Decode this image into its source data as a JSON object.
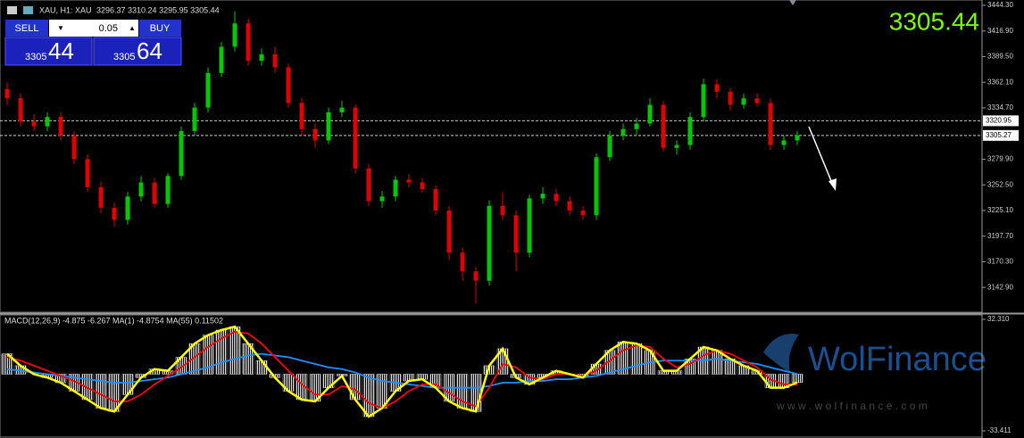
{
  "header": {
    "symbol": "XAU, H1: XAU",
    "ohlc": "3296.37 3310.24 3295.95 3305.44",
    "last_price": "3305.44"
  },
  "trade_panel": {
    "sell": "SELL",
    "buy": "BUY",
    "lot": "0.05",
    "sell_big": "3305",
    "sell_small": "44",
    "buy_big": "3305",
    "buy_small": "64"
  },
  "watermark": {
    "brand": "WolFinance",
    "url": "w w w . w o l f i n a n c e . c o m"
  },
  "chart_data": {
    "type": "candlestick",
    "up_color": "#00c800",
    "down_color": "#e00000",
    "ylim": [
      3116.4,
      3450.0
    ],
    "yticks": [
      {
        "value": 3444.3,
        "label": "3444.30"
      },
      {
        "value": 3416.9,
        "label": "3416.90"
      },
      {
        "value": 3389.5,
        "label": "3389.50"
      },
      {
        "value": 3362.1,
        "label": "3362.10"
      },
      {
        "value": 3334.7,
        "label": "3334.70"
      },
      {
        "value": 3279.9,
        "label": "3279.90"
      },
      {
        "value": 3252.5,
        "label": "3252.50"
      },
      {
        "value": 3225.1,
        "label": "3225.10"
      },
      {
        "value": 3197.7,
        "label": "3197.70"
      },
      {
        "value": 3170.3,
        "label": "3170.30"
      },
      {
        "value": 3142.9,
        "label": "3142.90"
      }
    ],
    "levels": [
      3320.95,
      3305.27
    ],
    "open": [
      3355,
      3345,
      3320,
      3315,
      3325,
      3305,
      3280,
      3250,
      3228,
      3215,
      3240,
      3255,
      3232,
      3262,
      3310,
      3335,
      3372,
      3400,
      3425,
      3385,
      3392,
      3378,
      3340,
      3312,
      3300,
      3330,
      3335,
      3270,
      3235,
      3240,
      3258,
      3255,
      3248,
      3225,
      3180,
      3160,
      3150,
      3230,
      3220,
      3180,
      3238,
      3243,
      3235,
      3225,
      3220,
      3282,
      3305,
      3312,
      3318,
      3338,
      3292,
      3295,
      3325,
      3360,
      3352,
      3338,
      3345,
      3340,
      3295,
      3300
    ],
    "high": [
      3362,
      3350,
      3328,
      3330,
      3330,
      3310,
      3285,
      3256,
      3234,
      3245,
      3262,
      3260,
      3265,
      3315,
      3340,
      3378,
      3405,
      3438,
      3430,
      3398,
      3400,
      3382,
      3345,
      3318,
      3335,
      3342,
      3338,
      3275,
      3246,
      3262,
      3264,
      3260,
      3252,
      3230,
      3185,
      3165,
      3236,
      3245,
      3225,
      3242,
      3250,
      3248,
      3240,
      3230,
      3286,
      3310,
      3318,
      3324,
      3345,
      3342,
      3300,
      3330,
      3366,
      3365,
      3356,
      3350,
      3350,
      3345,
      3305,
      3310
    ],
    "low": [
      3338,
      3315,
      3310,
      3310,
      3300,
      3275,
      3245,
      3222,
      3208,
      3210,
      3235,
      3228,
      3228,
      3258,
      3305,
      3330,
      3368,
      3395,
      3380,
      3380,
      3372,
      3335,
      3305,
      3292,
      3296,
      3325,
      3265,
      3230,
      3228,
      3235,
      3250,
      3244,
      3220,
      3172,
      3150,
      3126,
      3145,
      3215,
      3160,
      3175,
      3232,
      3230,
      3220,
      3215,
      3215,
      3278,
      3300,
      3306,
      3315,
      3288,
      3285,
      3290,
      3320,
      3345,
      3332,
      3334,
      3336,
      3290,
      3290,
      3295
    ],
    "close": [
      3345,
      3320,
      3315,
      3325,
      3305,
      3280,
      3250,
      3228,
      3215,
      3240,
      3255,
      3232,
      3262,
      3310,
      3335,
      3372,
      3400,
      3425,
      3385,
      3392,
      3378,
      3340,
      3312,
      3300,
      3330,
      3335,
      3270,
      3235,
      3240,
      3258,
      3255,
      3248,
      3225,
      3180,
      3160,
      3150,
      3230,
      3220,
      3180,
      3238,
      3243,
      3235,
      3225,
      3220,
      3282,
      3305,
      3312,
      3318,
      3338,
      3292,
      3295,
      3325,
      3360,
      3352,
      3338,
      3345,
      3340,
      3295,
      3300,
      3305.44
    ],
    "macd_panel": {
      "title": "MACD(12,26,9) -4.875 -6.267 MA(1) -4.8754 MA(55) 0.11502",
      "y2lim": [
        -37.09,
        34.94
      ],
      "y2ticks": [
        {
          "value": 32.31,
          "label": "32.310"
        },
        {
          "value": -33.411,
          "label": "-33.411"
        }
      ],
      "macd": {
        "color": "#ffff00",
        "values": [
          12,
          5,
          0,
          -2,
          -5,
          -10,
          -15,
          -20,
          -22,
          -12,
          -2,
          3,
          2,
          10,
          18,
          23,
          26,
          28,
          18,
          8,
          -2,
          -10,
          -15,
          -16,
          -8,
          -1,
          -15,
          -25,
          -20,
          -10,
          -4,
          -3,
          -8,
          -16,
          -20,
          -22,
          5,
          15,
          -2,
          -6,
          -2,
          2,
          0,
          -2,
          6,
          14,
          19,
          18,
          14,
          2,
          2,
          9,
          16,
          14,
          9,
          5,
          2,
          -8,
          -8,
          -4.875
        ]
      },
      "signal": {
        "color": "#ff0000",
        "values": [
          10,
          8,
          5,
          2,
          -1,
          -4,
          -8,
          -12,
          -16,
          -16,
          -12,
          -6,
          -1,
          4,
          10,
          16,
          21,
          25,
          24,
          18,
          10,
          2,
          -6,
          -12,
          -12,
          -7,
          -9,
          -17,
          -20,
          -16,
          -10,
          -6,
          -6,
          -11,
          -16,
          -19,
          -8,
          6,
          4,
          -2,
          -3,
          0,
          0,
          -1,
          2,
          8,
          14,
          17,
          16,
          9,
          4,
          6,
          11,
          14,
          12,
          8,
          4,
          -3,
          -6,
          -6.267
        ]
      },
      "ma55": {
        "color": "#1e90ff",
        "values": [
          3,
          2,
          1,
          0,
          -1,
          -2,
          -3,
          -4,
          -5,
          -5,
          -4,
          -3,
          -2,
          0,
          2,
          4,
          7,
          9,
          11,
          12,
          11,
          10,
          8,
          6,
          4,
          3,
          1,
          -2,
          -4,
          -5,
          -6,
          -7,
          -8,
          -8,
          -8,
          -8,
          -7,
          -5,
          -5,
          -4,
          -4,
          -3,
          -3,
          -2,
          -1,
          1,
          3,
          5,
          7,
          8,
          8,
          8,
          8,
          9,
          8,
          7,
          6,
          4,
          2,
          0.11502
        ]
      }
    }
  }
}
